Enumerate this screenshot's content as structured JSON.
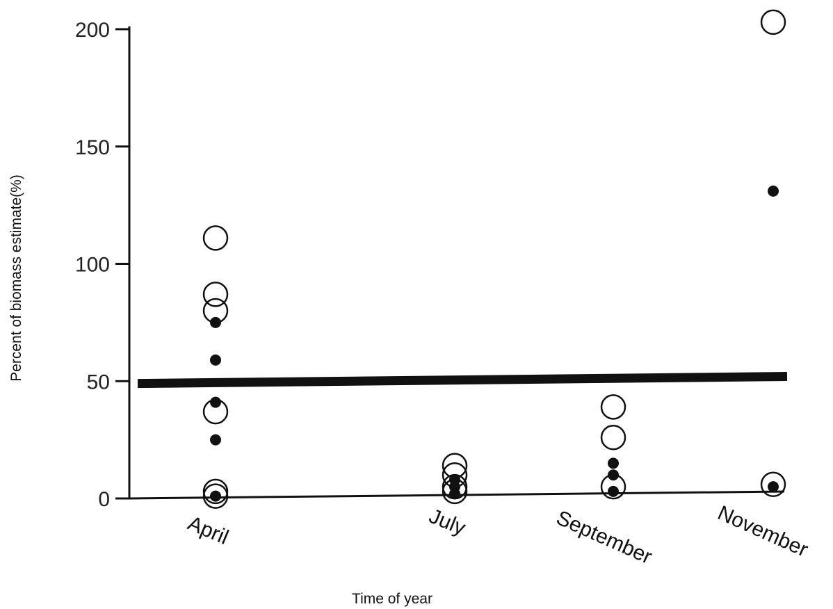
{
  "chart_data": {
    "type": "scatter",
    "xlabel": "Time of year",
    "ylabel": "Percent of biomass estimate(%)",
    "categories": [
      "April",
      "July",
      "September",
      "November"
    ],
    "ylim": [
      0,
      210
    ],
    "yticks": [
      0,
      50,
      100,
      150,
      200
    ],
    "grid": false,
    "legend": "none",
    "reference_line": {
      "y_start": 49,
      "y_end": 52
    },
    "series": [
      {
        "marker": "open-circle",
        "points": [
          {
            "x": "April",
            "y": 111
          },
          {
            "x": "April",
            "y": 87
          },
          {
            "x": "April",
            "y": 80
          },
          {
            "x": "April",
            "y": 37
          },
          {
            "x": "April",
            "y": 3
          },
          {
            "x": "April",
            "y": 1
          },
          {
            "x": "July",
            "y": 14
          },
          {
            "x": "July",
            "y": 10
          },
          {
            "x": "July",
            "y": 5
          },
          {
            "x": "July",
            "y": 3
          },
          {
            "x": "September",
            "y": 39
          },
          {
            "x": "September",
            "y": 26
          },
          {
            "x": "September",
            "y": 5
          },
          {
            "x": "November",
            "y": 203
          },
          {
            "x": "November",
            "y": 6
          }
        ]
      },
      {
        "marker": "filled-dot",
        "points": [
          {
            "x": "April",
            "y": 75
          },
          {
            "x": "April",
            "y": 59
          },
          {
            "x": "April",
            "y": 41
          },
          {
            "x": "April",
            "y": 25
          },
          {
            "x": "April",
            "y": 1
          },
          {
            "x": "July",
            "y": 8
          },
          {
            "x": "July",
            "y": 5
          },
          {
            "x": "July",
            "y": 2
          },
          {
            "x": "September",
            "y": 15
          },
          {
            "x": "September",
            "y": 10
          },
          {
            "x": "September",
            "y": 3
          },
          {
            "x": "November",
            "y": 131
          },
          {
            "x": "November",
            "y": 5
          }
        ]
      }
    ],
    "colors": {
      "ink": "#111111",
      "background": "#ffffff"
    }
  }
}
